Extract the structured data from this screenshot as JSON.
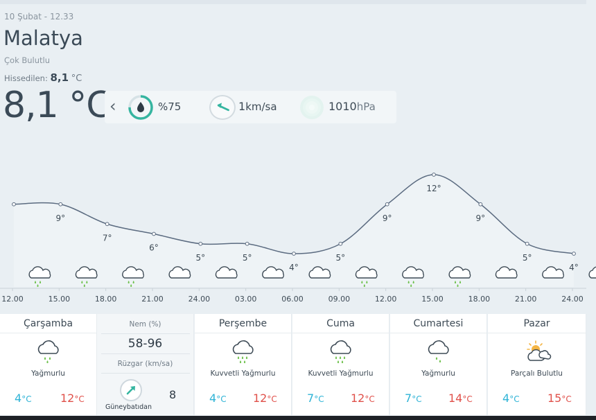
{
  "current": {
    "date": "10 Şubat - 12.33",
    "city": "Malatya",
    "condition": "Çok Bulutlu",
    "feels_label": "Hissedilen:",
    "feels_value": "8,1",
    "feels_unit": "°C",
    "temperature": "8,1 °C",
    "humidity": "%75",
    "humidity_fraction": 0.75,
    "wind_value": "1",
    "wind_unit": "km/sa",
    "pressure_value": "1010",
    "pressure_unit": "hPa",
    "prev_icon": "chevron-left-icon"
  },
  "chart_data": {
    "type": "line",
    "x": [
      "12.00",
      "15.00",
      "18.00",
      "21.00",
      "24.00",
      "03.00",
      "06.00",
      "09.00",
      "12.00",
      "15.00",
      "18.00",
      "21.00",
      "24.00"
    ],
    "values": [
      9,
      9,
      7,
      6,
      5,
      5,
      4,
      5,
      9,
      12,
      9,
      5,
      4
    ],
    "labels": [
      "",
      "9°",
      "7°",
      "6°",
      "5°",
      "5°",
      "4°",
      "5°",
      "9°",
      "12°",
      "9°",
      "5°",
      "4°"
    ],
    "icons": [
      "rain",
      "rain",
      "rain",
      "cloud",
      "cloud",
      "cloud",
      "cloud",
      "rain",
      "rain",
      "rain",
      "cloud",
      "cloud",
      "cloud"
    ],
    "ylim": [
      0,
      14
    ],
    "grid": false,
    "colors": {
      "line": "#5b6b80",
      "fill": "#eef3f6",
      "rain": "#6cc04a"
    }
  },
  "forecast": {
    "days": [
      {
        "name": "Çarşamba",
        "icon": "rain",
        "condition": "Yağmurlu",
        "min": "4",
        "max": "12",
        "unit": "°C"
      },
      {
        "name": "Perşembe",
        "icon": "rain",
        "condition": "Kuvvetli Yağmurlu",
        "min": "4",
        "max": "12",
        "unit": "°C"
      },
      {
        "name": "Cuma",
        "icon": "rain",
        "condition": "Kuvvetli Yağmurlu",
        "min": "7",
        "max": "12",
        "unit": "°C"
      },
      {
        "name": "Cumartesi",
        "icon": "rain",
        "condition": "Yağmurlu",
        "min": "7",
        "max": "14",
        "unit": "°C"
      },
      {
        "name": "Pazar",
        "icon": "partly-cloudy",
        "condition": "Parçalı Bulutlu",
        "min": "4",
        "max": "15",
        "unit": "°C"
      }
    ],
    "info": {
      "humidity_label": "Nem (%)",
      "humidity_value": "58-96",
      "wind_label": "Rüzgar (km/sa)",
      "wind_direction": "Güneybatıdan",
      "wind_value": "8"
    }
  },
  "colors": {
    "min_temp": "#2eb3d6",
    "max_temp": "#e0504a",
    "accent": "#35b5a0"
  }
}
